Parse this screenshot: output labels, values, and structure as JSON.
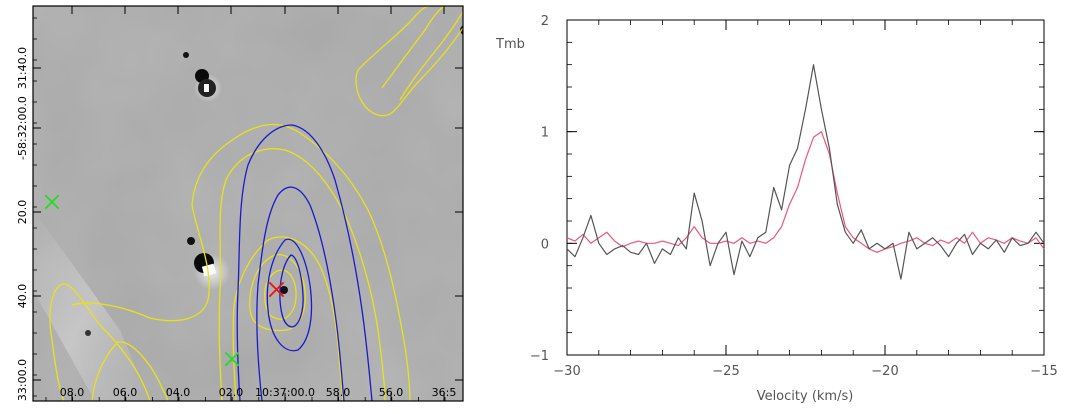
{
  "chart_data": [
    {
      "type": "image",
      "panel": "left",
      "xticks": [
        "08.0",
        "06.0",
        "04.0",
        "02.0",
        "10:37:00.0",
        "58.0",
        "56.0",
        "36:5"
      ],
      "yticks": [
        "31:40.0",
        "-58:32:00.0",
        "20.0",
        "40.0",
        "33:00.0"
      ],
      "markers": [
        {
          "name": "green-cross-1",
          "color": "#22dd22"
        },
        {
          "name": "green-cross-2",
          "color": "#22dd22"
        },
        {
          "name": "red-cross",
          "color": "#ee1111"
        }
      ],
      "contour_colors": {
        "yellow": "#e8e21a",
        "blue": "#1a1acc"
      }
    },
    {
      "type": "line",
      "panel": "right",
      "xlabel": "Velocity (km/s)",
      "ylabel": "Tmb",
      "xlim": [
        -30,
        -15
      ],
      "ylim": [
        -1,
        2
      ],
      "xticks": [
        -30,
        -25,
        -20,
        -15
      ],
      "yticks": [
        -1,
        0,
        1,
        2
      ],
      "series": [
        {
          "color": "#555555",
          "x": [
            -30.0,
            -29.75,
            -29.5,
            -29.25,
            -29.0,
            -28.75,
            -28.5,
            -28.25,
            -28.0,
            -27.75,
            -27.5,
            -27.25,
            -27.0,
            -26.75,
            -26.5,
            -26.25,
            -26.0,
            -25.75,
            -25.5,
            -25.25,
            -25.0,
            -24.75,
            -24.5,
            -24.25,
            -24.0,
            -23.75,
            -23.5,
            -23.25,
            -23.0,
            -22.75,
            -22.5,
            -22.25,
            -22.0,
            -21.75,
            -21.5,
            -21.25,
            -21.0,
            -20.75,
            -20.5,
            -20.25,
            -20.0,
            -19.75,
            -19.5,
            -19.25,
            -19.0,
            -18.75,
            -18.5,
            -18.25,
            -18.0,
            -17.75,
            -17.5,
            -17.25,
            -17.0,
            -16.75,
            -16.5,
            -16.25,
            -16.0,
            -15.75,
            -15.5,
            -15.25,
            -15.0
          ],
          "y": [
            -0.05,
            -0.12,
            0.05,
            0.25,
            0.0,
            -0.1,
            -0.05,
            -0.02,
            -0.08,
            -0.1,
            0.0,
            -0.18,
            -0.05,
            -0.1,
            0.05,
            -0.05,
            0.45,
            0.2,
            -0.2,
            0.0,
            0.1,
            -0.28,
            0.02,
            -0.12,
            0.05,
            0.1,
            0.5,
            0.3,
            0.7,
            0.85,
            1.2,
            1.6,
            1.2,
            0.85,
            0.35,
            0.1,
            0.0,
            0.12,
            -0.05,
            0.0,
            -0.05,
            0.0,
            -0.32,
            0.1,
            -0.05,
            0.0,
            0.05,
            -0.02,
            -0.12,
            0.0,
            0.08,
            -0.1,
            0.0,
            -0.05,
            0.03,
            -0.08,
            0.05,
            -0.02,
            0.0,
            0.1,
            0.0
          ]
        },
        {
          "color": "#ee5577",
          "x": [
            -30.0,
            -29.75,
            -29.5,
            -29.25,
            -29.0,
            -28.75,
            -28.5,
            -28.25,
            -28.0,
            -27.75,
            -27.5,
            -27.25,
            -27.0,
            -26.75,
            -26.5,
            -26.25,
            -26.0,
            -25.75,
            -25.5,
            -25.25,
            -25.0,
            -24.75,
            -24.5,
            -24.25,
            -24.0,
            -23.75,
            -23.5,
            -23.25,
            -23.0,
            -22.75,
            -22.5,
            -22.25,
            -22.0,
            -21.75,
            -21.5,
            -21.25,
            -21.0,
            -20.75,
            -20.5,
            -20.25,
            -20.0,
            -19.75,
            -19.5,
            -19.25,
            -19.0,
            -18.75,
            -18.5,
            -18.25,
            -18.0,
            -17.75,
            -17.5,
            -17.25,
            -17.0,
            -16.75,
            -16.5,
            -16.25,
            -16.0,
            -15.75,
            -15.5,
            -15.25,
            -15.0
          ],
          "y": [
            0.05,
            0.02,
            0.08,
            0.0,
            0.05,
            0.1,
            0.02,
            -0.03,
            0.0,
            0.02,
            0.0,
            0.0,
            0.02,
            0.0,
            -0.02,
            0.05,
            0.15,
            0.05,
            0.0,
            0.0,
            0.02,
            0.0,
            0.05,
            0.0,
            0.02,
            0.0,
            0.05,
            0.15,
            0.35,
            0.5,
            0.75,
            0.95,
            1.0,
            0.8,
            0.45,
            0.15,
            0.05,
            0.0,
            -0.05,
            -0.08,
            -0.05,
            -0.03,
            0.0,
            0.02,
            0.05,
            0.0,
            -0.02,
            0.03,
            0.0,
            0.05,
            0.0,
            0.1,
            0.0,
            0.05,
            0.03,
            0.0,
            0.05,
            0.02,
            0.0,
            0.05,
            -0.05
          ]
        }
      ]
    }
  ]
}
